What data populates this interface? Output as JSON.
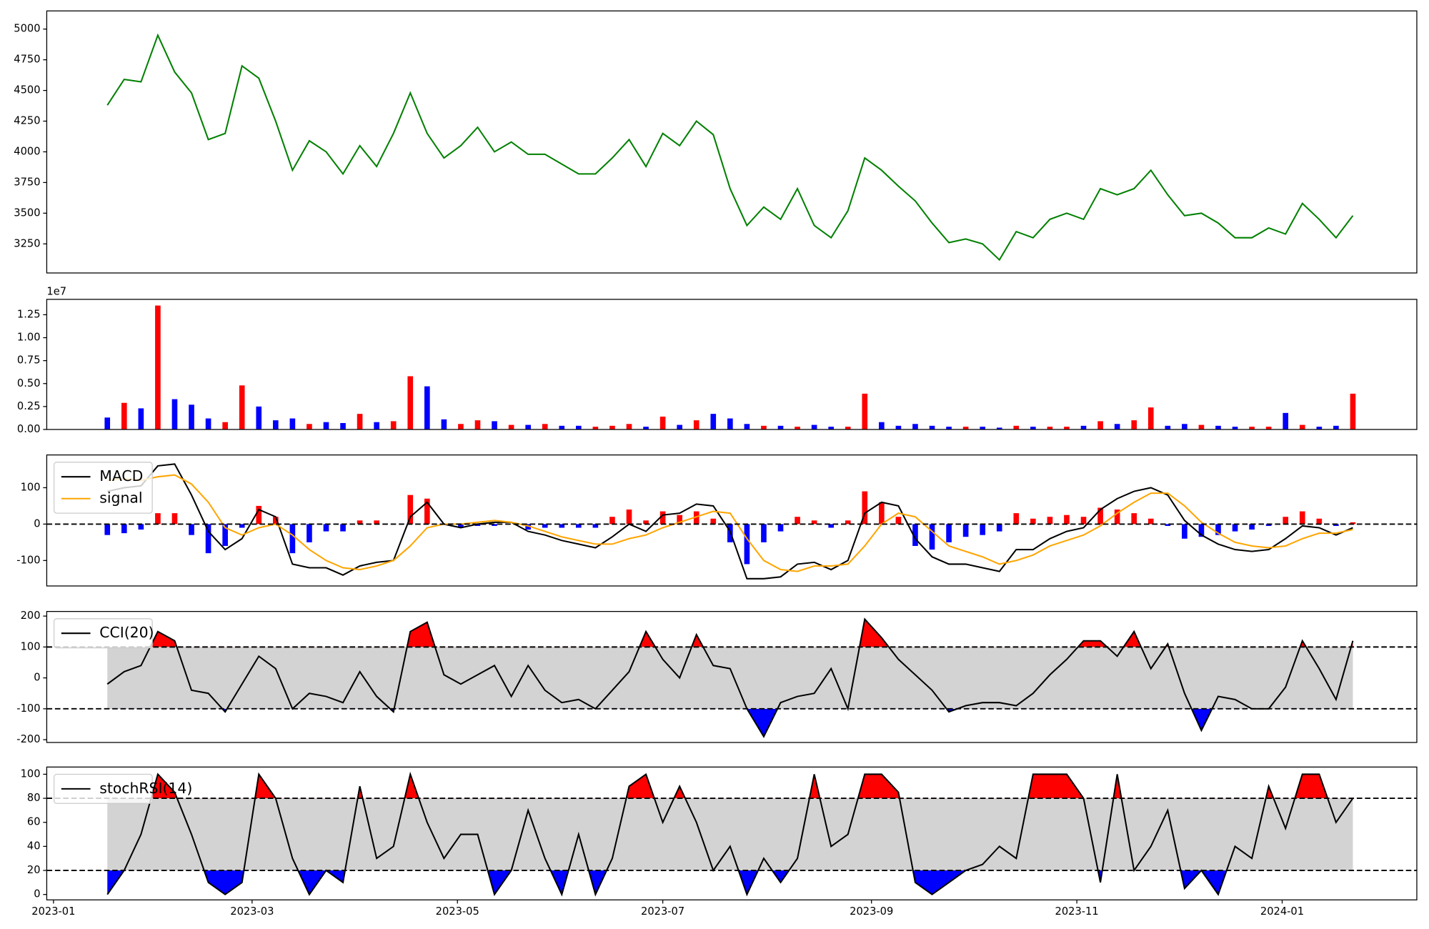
{
  "chart_data": [
    {
      "type": "line",
      "xlim": [
        "2022-12-30",
        "2024-02-10"
      ],
      "ylim": [
        3013,
        5148
      ],
      "yticks": [
        3250,
        3500,
        3750,
        4000,
        4250,
        4500,
        4750,
        5000
      ],
      "x": [
        "2023-01-17",
        "2023-01-22",
        "2023-01-27",
        "2023-02-01",
        "2023-02-06",
        "2023-02-11",
        "2023-02-16",
        "2023-02-21",
        "2023-02-26",
        "2023-03-03",
        "2023-03-08",
        "2023-03-13",
        "2023-03-18",
        "2023-03-23",
        "2023-03-28",
        "2023-04-02",
        "2023-04-07",
        "2023-04-12",
        "2023-04-17",
        "2023-04-22",
        "2023-04-27",
        "2023-05-02",
        "2023-05-07",
        "2023-05-12",
        "2023-05-17",
        "2023-05-22",
        "2023-05-27",
        "2023-06-01",
        "2023-06-06",
        "2023-06-11",
        "2023-06-16",
        "2023-06-21",
        "2023-06-26",
        "2023-07-01",
        "2023-07-06",
        "2023-07-11",
        "2023-07-16",
        "2023-07-21",
        "2023-07-26",
        "2023-07-31",
        "2023-08-05",
        "2023-08-10",
        "2023-08-15",
        "2023-08-20",
        "2023-08-25",
        "2023-08-30",
        "2023-09-04",
        "2023-09-09",
        "2023-09-14",
        "2023-09-19",
        "2023-09-24",
        "2023-09-29",
        "2023-10-04",
        "2023-10-09",
        "2023-10-14",
        "2023-10-19",
        "2023-10-24",
        "2023-10-29",
        "2023-11-03",
        "2023-11-08",
        "2023-11-13",
        "2023-11-18",
        "2023-11-23",
        "2023-11-28",
        "2023-12-03",
        "2023-12-08",
        "2023-12-13",
        "2023-12-18",
        "2023-12-23",
        "2023-12-28",
        "2024-01-02",
        "2024-01-07",
        "2024-01-12",
        "2024-01-17",
        "2024-01-22"
      ],
      "series": [
        {
          "color": "green",
          "values": [
            4380,
            4590,
            4570,
            4950,
            4650,
            4480,
            4100,
            4150,
            4700,
            4600,
            4250,
            3850,
            4090,
            4000,
            3820,
            4050,
            3880,
            4150,
            4480,
            4150,
            3950,
            4050,
            4200,
            4000,
            4080,
            3980,
            3980,
            3900,
            3820,
            3820,
            3950,
            4100,
            3880,
            4150,
            4050,
            4250,
            4140,
            3700,
            3400,
            3550,
            3450,
            3700,
            3400,
            3300,
            3520,
            3950,
            3850,
            3720,
            3600,
            3420,
            3260,
            3290,
            3250,
            3120,
            3350,
            3300,
            3450,
            3500,
            3450,
            3700,
            3650,
            3700,
            3850,
            3650,
            3480,
            3500,
            3420,
            3300,
            3300,
            3380,
            3330,
            3580,
            3450,
            3300,
            3480
          ]
        }
      ]
    },
    {
      "type": "bar",
      "ylim": [
        0,
        14175000
      ],
      "offset_label": "1e7",
      "yticks": [
        {
          "value": 0,
          "label": "0.00"
        },
        {
          "value": 2500000,
          "label": "0.25"
        },
        {
          "value": 5000000,
          "label": "0.50"
        },
        {
          "value": 7500000,
          "label": "0.75"
        },
        {
          "value": 10000000,
          "label": "1.00"
        },
        {
          "value": 12500000,
          "label": "1.25"
        }
      ],
      "colors": {
        "up": "red",
        "down": "blue"
      },
      "values": [
        1300000,
        2900000,
        2300000,
        13500000,
        3300000,
        2700000,
        1200000,
        800000,
        4800000,
        2500000,
        1000000,
        1200000,
        600000,
        800000,
        700000,
        1700000,
        800000,
        900000,
        5800000,
        4700000,
        1100000,
        600000,
        1000000,
        900000,
        500000,
        500000,
        600000,
        400000,
        400000,
        300000,
        400000,
        600000,
        300000,
        1400000,
        500000,
        1000000,
        1700000,
        1200000,
        600000,
        400000,
        400000,
        300000,
        500000,
        300000,
        300000,
        3900000,
        800000,
        400000,
        600000,
        400000,
        300000,
        300000,
        300000,
        200000,
        400000,
        300000,
        300000,
        300000,
        400000,
        900000,
        600000,
        1000000,
        2400000,
        400000,
        600000,
        500000,
        400000,
        300000,
        300000,
        300000,
        1800000,
        500000,
        300000,
        400000,
        3900000
      ]
    },
    {
      "type": "line",
      "ylim": [
        -170,
        190
      ],
      "yticks": [
        -100,
        0,
        100
      ],
      "hline": 0,
      "legend": "upper left",
      "series": [
        {
          "name": "MACD",
          "color": "black",
          "values": [
            90,
            100,
            105,
            160,
            165,
            80,
            -20,
            -70,
            -40,
            40,
            20,
            -110,
            -120,
            -120,
            -140,
            -115,
            -105,
            -100,
            20,
            60,
            0,
            -10,
            0,
            5,
            5,
            -20,
            -30,
            -45,
            -55,
            -65,
            -35,
            0,
            -20,
            25,
            30,
            55,
            50,
            -20,
            -150,
            -150,
            -145,
            -110,
            -105,
            -125,
            -100,
            30,
            60,
            50,
            -40,
            -90,
            -110,
            -110,
            -120,
            -130,
            -70,
            -70,
            -40,
            -20,
            -10,
            40,
            70,
            90,
            100,
            80,
            10,
            -30,
            -55,
            -70,
            -75,
            -70,
            -40,
            -5,
            -10,
            -30,
            -10
          ]
        },
        {
          "name": "signal",
          "color": "orange",
          "values": [
            120,
            125,
            120,
            130,
            135,
            110,
            60,
            -10,
            -30,
            -10,
            0,
            -30,
            -70,
            -100,
            -120,
            -125,
            -115,
            -100,
            -60,
            -10,
            0,
            0,
            5,
            10,
            5,
            -5,
            -20,
            -35,
            -45,
            -55,
            -55,
            -40,
            -30,
            -10,
            5,
            20,
            35,
            30,
            -40,
            -100,
            -125,
            -130,
            -115,
            -115,
            -110,
            -60,
            0,
            30,
            20,
            -20,
            -60,
            -75,
            -90,
            -110,
            -100,
            -85,
            -60,
            -45,
            -30,
            -5,
            30,
            60,
            85,
            85,
            50,
            5,
            -25,
            -50,
            -60,
            -65,
            -60,
            -40,
            -25,
            -25,
            -15
          ]
        }
      ],
      "histogram": {
        "colors": {
          "positive": "red",
          "negative": "blue"
        },
        "values": [
          -30,
          -25,
          -15,
          30,
          30,
          -30,
          -80,
          -60,
          -10,
          50,
          20,
          -80,
          -50,
          -20,
          -20,
          10,
          10,
          0,
          80,
          70,
          0,
          -10,
          -5,
          -5,
          0,
          -15,
          -10,
          -10,
          -10,
          -10,
          20,
          40,
          10,
          35,
          25,
          35,
          15,
          -50,
          -110,
          -50,
          -20,
          20,
          10,
          -10,
          10,
          90,
          60,
          20,
          -60,
          -70,
          -50,
          -35,
          -30,
          -20,
          30,
          15,
          20,
          25,
          20,
          45,
          40,
          30,
          15,
          -5,
          -40,
          -35,
          -30,
          -20,
          -15,
          -5,
          20,
          35,
          15,
          -5,
          5
        ]
      }
    },
    {
      "type": "line",
      "ylim": [
        -209,
        215
      ],
      "yticks": [
        -200,
        -100,
        0,
        100,
        200
      ],
      "bands": [
        -100,
        100
      ],
      "band_color": "lightgray",
      "above_color": "red",
      "below_color": "blue",
      "legend": "upper left",
      "series": [
        {
          "name": "CCI(20)",
          "color": "black",
          "values": [
            -20,
            20,
            40,
            150,
            120,
            -40,
            -50,
            -110,
            -20,
            70,
            30,
            -100,
            -50,
            -60,
            -80,
            20,
            -60,
            -110,
            150,
            180,
            10,
            -20,
            10,
            40,
            -60,
            40,
            -40,
            -80,
            -70,
            -100,
            -40,
            20,
            150,
            60,
            0,
            140,
            40,
            30,
            -100,
            -190,
            -80,
            -60,
            -50,
            30,
            -100,
            190,
            130,
            60,
            10,
            -40,
            -110,
            -90,
            -80,
            -80,
            -90,
            -50,
            10,
            60,
            120,
            120,
            70,
            150,
            30,
            110,
            -50,
            -170,
            -60,
            -70,
            -100,
            -100,
            -30,
            120,
            30,
            -70,
            120
          ]
        }
      ]
    },
    {
      "type": "line",
      "ylim": [
        -4.5,
        106
      ],
      "yticks": [
        0,
        20,
        40,
        60,
        80,
        100
      ],
      "bands": [
        20,
        80
      ],
      "band_color": "lightgray",
      "above_color": "red",
      "below_color": "blue",
      "legend": "upper left",
      "xticks": [
        "2023-01",
        "2023-03",
        "2023-05",
        "2023-07",
        "2023-09",
        "2023-11",
        "2024-01"
      ],
      "series": [
        {
          "name": "stochRSI(14)",
          "color": "black",
          "values": [
            0,
            20,
            50,
            100,
            85,
            50,
            10,
            0,
            10,
            100,
            80,
            30,
            0,
            20,
            10,
            90,
            30,
            40,
            100,
            60,
            30,
            50,
            50,
            0,
            20,
            70,
            30,
            0,
            50,
            0,
            30,
            90,
            100,
            60,
            90,
            60,
            20,
            40,
            0,
            30,
            10,
            30,
            100,
            40,
            50,
            100,
            100,
            85,
            10,
            0,
            10,
            20,
            25,
            40,
            30,
            100,
            100,
            100,
            80,
            10,
            100,
            20,
            40,
            70,
            5,
            20,
            0,
            40,
            30,
            90,
            55,
            100,
            100,
            60,
            80
          ]
        }
      ]
    }
  ]
}
